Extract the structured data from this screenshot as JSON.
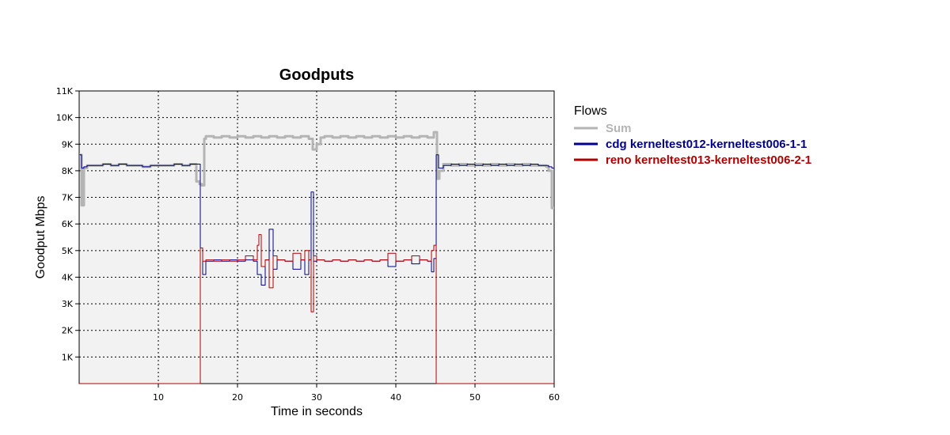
{
  "chart_data": {
    "type": "line",
    "title": "Goodputs",
    "xlabel": "Time in seconds",
    "ylabel": "Goodput Mbps",
    "xlim": [
      0,
      60
    ],
    "ylim": [
      0,
      11000
    ],
    "x_ticks": [
      10,
      20,
      30,
      40,
      50,
      60
    ],
    "y_ticks": [
      1000,
      2000,
      3000,
      4000,
      5000,
      6000,
      7000,
      8000,
      9000,
      10000,
      11000
    ],
    "x_tick_labels": [
      "10",
      "20",
      "30",
      "40",
      "50",
      "60"
    ],
    "y_tick_labels": [
      "1K",
      "2K",
      "3K",
      "4K",
      "5K",
      "6K",
      "7K",
      "8K",
      "9K",
      "10K",
      "11K"
    ],
    "grid": true,
    "legend_title": "Flows",
    "legend_position": "right",
    "series": [
      {
        "name": "Sum",
        "color": "#b4b4b4",
        "x": [
          0,
          0.3,
          0.6,
          1,
          2,
          3,
          4,
          5,
          6,
          7,
          8,
          9,
          10,
          11,
          12,
          13,
          14,
          14.8,
          15.2,
          15.5,
          15.8,
          16,
          17,
          18,
          19,
          20,
          21,
          22,
          23,
          24,
          25,
          26,
          27,
          28,
          29,
          29.5,
          30,
          30.5,
          31,
          32,
          33,
          34,
          35,
          36,
          37,
          38,
          39,
          40,
          41,
          42,
          43,
          44,
          44.8,
          45.2,
          45.5,
          46,
          47,
          48,
          49,
          50,
          51,
          52,
          53,
          54,
          55,
          56,
          57,
          58,
          59,
          59.3,
          59.7
        ],
        "y": [
          8600,
          6700,
          8100,
          8200,
          8200,
          8250,
          8200,
          8250,
          8200,
          8200,
          8150,
          8200,
          8200,
          8200,
          8250,
          8200,
          8250,
          7600,
          7500,
          7450,
          9200,
          9300,
          9250,
          9300,
          9250,
          9300,
          9250,
          9300,
          9250,
          9300,
          9250,
          9300,
          9250,
          9300,
          9200,
          8800,
          9000,
          9250,
          9300,
          9250,
          9300,
          9250,
          9300,
          9250,
          9300,
          9250,
          9300,
          9250,
          9300,
          9250,
          9300,
          9250,
          9450,
          7700,
          8000,
          8250,
          8200,
          8250,
          8200,
          8250,
          8200,
          8250,
          8200,
          8250,
          8200,
          8250,
          8200,
          8200,
          8150,
          8000,
          6600
        ]
      },
      {
        "name": "cdg kerneltest012-kerneltest006-1-1",
        "color": "#00008b",
        "x": [
          0,
          0.3,
          0.6,
          1,
          2,
          3,
          4,
          5,
          6,
          7,
          8,
          9,
          10,
          11,
          12,
          13,
          14,
          14.8,
          15,
          15.3,
          15.6,
          16,
          17,
          18,
          19,
          20,
          21,
          22,
          22.5,
          23,
          23.5,
          24,
          24.5,
          25,
          26,
          27,
          28,
          28.5,
          29,
          29.3,
          29.6,
          30,
          31,
          32,
          33,
          34,
          35,
          36,
          37,
          38,
          39,
          40,
          41,
          42,
          43,
          44,
          44.5,
          44.8,
          45.1,
          45.4,
          46,
          47,
          48,
          49,
          50,
          51,
          52,
          53,
          54,
          55,
          56,
          57,
          58,
          59,
          59.3,
          59.7
        ],
        "y": [
          8600,
          8100,
          8150,
          8200,
          8200,
          8250,
          8200,
          8250,
          8200,
          8200,
          8150,
          8200,
          8200,
          8200,
          8250,
          8200,
          8250,
          8250,
          8250,
          5100,
          4100,
          4600,
          4650,
          4600,
          4650,
          4600,
          4650,
          4600,
          4100,
          3700,
          4650,
          5800,
          4300,
          4650,
          4600,
          4300,
          4650,
          4100,
          4650,
          7200,
          4600,
          4650,
          4600,
          4650,
          4600,
          4650,
          4600,
          4650,
          4600,
          4650,
          4400,
          4600,
          4650,
          4500,
          4650,
          4600,
          4200,
          4700,
          8600,
          8100,
          8200,
          8250,
          8200,
          8250,
          8200,
          8250,
          8200,
          8250,
          8200,
          8250,
          8200,
          8250,
          8200,
          8200,
          8150,
          8100
        ]
      },
      {
        "name": "reno kerneltest013-kerneltest006-2-1",
        "color": "#b00000",
        "x": [
          0,
          15,
          15.3,
          15.6,
          16,
          17,
          18,
          19,
          20,
          21,
          22,
          22.5,
          22.7,
          23,
          23.5,
          24,
          24.5,
          25,
          26,
          27,
          28,
          28.5,
          29,
          29.3,
          29.6,
          30,
          31,
          32,
          33,
          34,
          35,
          36,
          37,
          38,
          39,
          40,
          41,
          42,
          43,
          44,
          44.5,
          44.8,
          45.1,
          46,
          50,
          55,
          60
        ],
        "y": [
          0,
          0,
          5100,
          4600,
          4650,
          4600,
          4650,
          4600,
          4650,
          4800,
          4650,
          5200,
          5600,
          4400,
          4650,
          3600,
          4800,
          4650,
          4600,
          4900,
          4650,
          5000,
          4650,
          2700,
          4800,
          4650,
          4600,
          4650,
          4600,
          4650,
          4600,
          4650,
          4600,
          4650,
          4900,
          4600,
          4650,
          4800,
          4650,
          4600,
          5000,
          5200,
          0,
          0,
          0,
          0,
          0
        ]
      }
    ]
  }
}
